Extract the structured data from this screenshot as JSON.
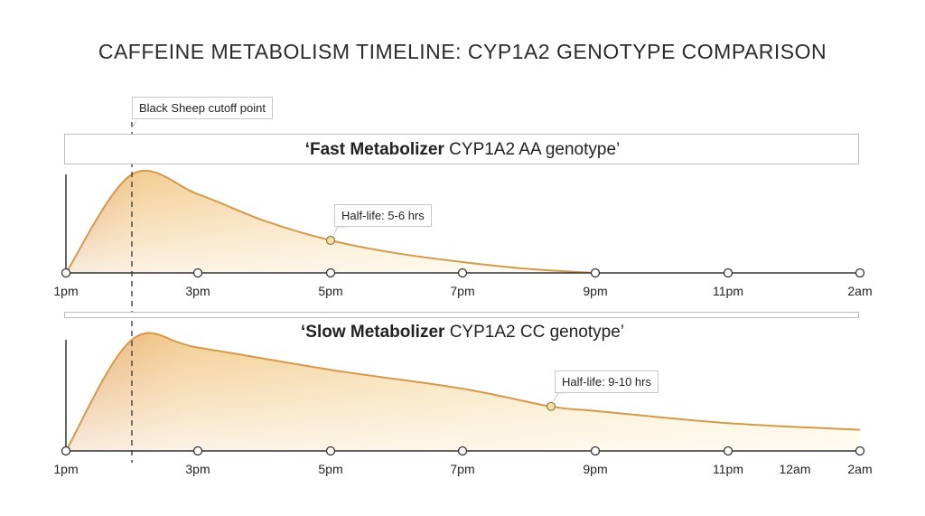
{
  "title": "CAFFEINE METABOLISM TIMELINE: CYP1A2 GENOTYPE COMPARISON",
  "cutoff_label": "Black Sheep cutoff point",
  "colors": {
    "stroke": "#d49a4c",
    "fill_dark": "#e6a96a",
    "fill_light": "#f8e9b4",
    "axis": "#333333"
  },
  "chart_data": [
    {
      "type": "area",
      "title_bold": "‘Fast Metabolizer",
      "title_rest": " CYP1A2 AA genotype’",
      "x_ticks": [
        "1pm",
        "3pm",
        "5pm",
        "7pm",
        "9pm",
        "11pm",
        "2am"
      ],
      "points": [
        {
          "x": "1pm",
          "y": 0
        },
        {
          "x": "2pm",
          "y": 100
        },
        {
          "x": "3pm",
          "y": 80
        },
        {
          "x": "4pm",
          "y": 53
        },
        {
          "x": "5pm",
          "y": 33
        },
        {
          "x": "6pm",
          "y": 20
        },
        {
          "x": "7pm",
          "y": 11
        },
        {
          "x": "8pm",
          "y": 4
        },
        {
          "x": "9pm",
          "y": 0
        }
      ],
      "annotation": {
        "x": "5pm",
        "y": 33,
        "label": "Half-life: 5-6 hrs"
      }
    },
    {
      "type": "area",
      "title_bold": "‘Slow Metabolizer",
      "title_rest": " CYP1A2 CC genotype’",
      "x_ticks": [
        "1pm",
        "3pm",
        "5pm",
        "7pm",
        "9pm",
        "11pm",
        "2am"
      ],
      "extra_tick_label": "12am",
      "points": [
        {
          "x": "1pm",
          "y": 0
        },
        {
          "x": "2pm",
          "y": 100
        },
        {
          "x": "3pm",
          "y": 93
        },
        {
          "x": "5pm",
          "y": 73
        },
        {
          "x": "7pm",
          "y": 56
        },
        {
          "x": "8:20pm",
          "y": 40
        },
        {
          "x": "9pm",
          "y": 36
        },
        {
          "x": "11pm",
          "y": 25
        },
        {
          "x": "2am",
          "y": 19
        }
      ],
      "annotation": {
        "x": "8:20pm",
        "y": 40,
        "label": "Half-life: 9-10 hrs"
      }
    }
  ]
}
